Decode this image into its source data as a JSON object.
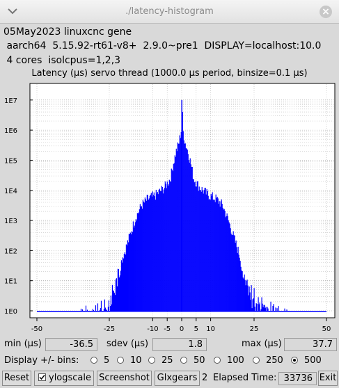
{
  "window": {
    "title": "./latency-histogram"
  },
  "info": {
    "line1": "05May2023 linuxcnc gene",
    "line2": " aarch64  5.15.92-rt61-v8+  2.9.0~pre1  DISPLAY=localhost:10.0",
    "line3": " 4 cores  isolcpus=1,2,3"
  },
  "chart_data": {
    "type": "bar",
    "title": "Latency (µs) servo thread (1000.0 µs period, binsize=0.1 µs)",
    "x_ticks": [
      -50,
      -25,
      -10,
      -5,
      0,
      5,
      10,
      25,
      50
    ],
    "y_ticks": [
      "1E0",
      "1E1",
      "1E2",
      "1E3",
      "1E4",
      "1E5",
      "1E6",
      "1E7"
    ],
    "xlim": [
      -50,
      50
    ],
    "ylim_log10": [
      0,
      7.4
    ],
    "log_scale_y": true,
    "grid": true,
    "color": "#0000ff",
    "envelope_log10": [
      [
        -36.5,
        0
      ],
      [
        -26.0,
        0.4
      ],
      [
        -24.0,
        0.9
      ],
      [
        -22.0,
        1.4
      ],
      [
        -20.0,
        1.9
      ],
      [
        -18.0,
        2.5
      ],
      [
        -16.0,
        3.1
      ],
      [
        -14.0,
        3.5
      ],
      [
        -12.0,
        3.7
      ],
      [
        -9.0,
        3.85
      ],
      [
        -6.0,
        4.1
      ],
      [
        -4.0,
        4.4
      ],
      [
        -3.0,
        4.9
      ],
      [
        -2.0,
        5.3
      ],
      [
        -1.0,
        5.6
      ],
      [
        -0.3,
        6.0
      ],
      [
        0.0,
        7.0
      ],
      [
        0.3,
        6.0
      ],
      [
        1.0,
        5.6
      ],
      [
        2.0,
        5.3
      ],
      [
        3.0,
        4.9
      ],
      [
        4.0,
        4.4
      ],
      [
        6.0,
        4.1
      ],
      [
        9.0,
        3.85
      ],
      [
        12.0,
        3.7
      ],
      [
        14.0,
        3.5
      ],
      [
        16.0,
        3.0
      ],
      [
        18.0,
        2.4
      ],
      [
        20.0,
        1.8
      ],
      [
        22.0,
        1.3
      ],
      [
        24.0,
        0.8
      ],
      [
        26.0,
        0.4
      ],
      [
        37.7,
        0
      ]
    ]
  },
  "stats": {
    "min_label": "min (µs)",
    "min_value": "-36.5",
    "sdev_label": "sdev (µs)",
    "sdev_value": "1.8",
    "max_label": "max (µs)",
    "max_value": "37.7"
  },
  "bins": {
    "label": "Display +/- bins:",
    "options": [
      "5",
      "10",
      "25",
      "50",
      "100",
      "250",
      "500"
    ],
    "selected": "500"
  },
  "buttons": {
    "reset": "Reset",
    "ylogscale": "ylogscale",
    "screenshot": "Screenshot",
    "glxgears": "Glxgears",
    "glxgears_count": "2",
    "elapsed_label": "Elapsed Time:",
    "elapsed_value": "33736",
    "exit": "Exit"
  }
}
